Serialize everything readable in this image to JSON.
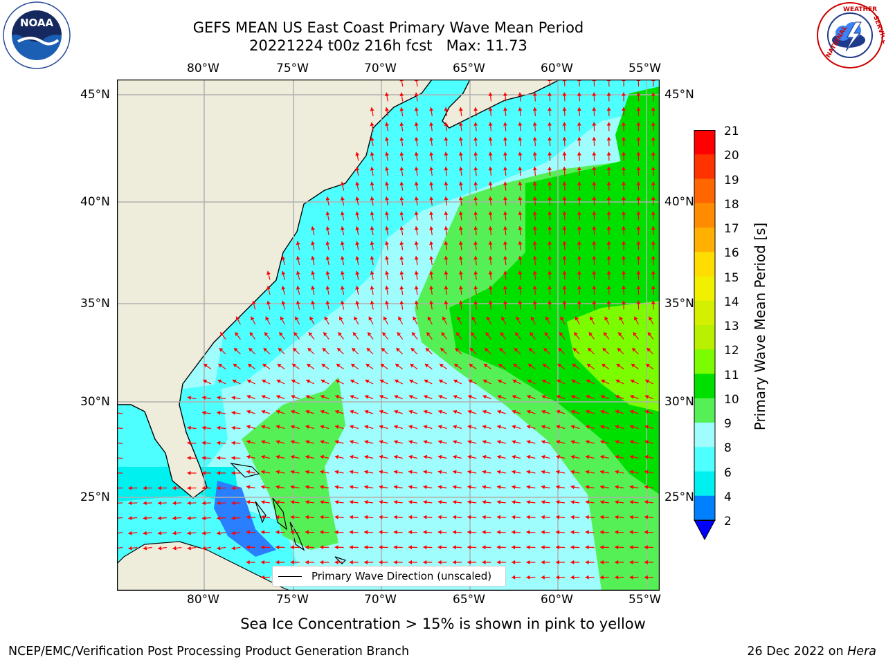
{
  "header": {
    "title_line1": "GEFS MEAN US East Coast Primary Wave Mean Period",
    "title_line2": "20221224 t00z 216h fcst   Max: 11.73"
  },
  "logos": {
    "noaa_text": "NOAA",
    "nws_ring_text": "NATIONAL WEATHER SERVICE"
  },
  "map": {
    "lon_ticks": [
      "80°W",
      "75°W",
      "70°W",
      "65°W",
      "60°W",
      "55°W"
    ],
    "lat_ticks": [
      "45°N",
      "40°N",
      "35°N",
      "30°N",
      "25°N"
    ],
    "legend_label": "Primary Wave Direction (unscaled)",
    "colors": {
      "land": "#eeeddc",
      "ocean_base": "#9ffdfd",
      "arrow": "#ff0000",
      "grid": "#b0b0b0"
    }
  },
  "colorbar": {
    "label": "Primary Wave Mean Period [s]",
    "ticks": [
      "21",
      "20",
      "19",
      "18",
      "17",
      "16",
      "15",
      "14",
      "13",
      "12",
      "11",
      "10",
      "9",
      "8",
      "6",
      "4",
      "2"
    ],
    "colors": [
      "#ff0000",
      "#ff3300",
      "#ff6600",
      "#ff8c00",
      "#ffb000",
      "#ffdd00",
      "#f0f000",
      "#d4f000",
      "#b8f000",
      "#7cfc00",
      "#00e000",
      "#55f055",
      "#9ffdfd",
      "#4dffff",
      "#00f0f0",
      "#0080ff"
    ],
    "under_color": "#0000ff"
  },
  "chart_data": {
    "type": "heatmap",
    "title": "GEFS MEAN US East Coast Primary Wave Mean Period",
    "subtitle": "20221224 t00z 216h fcst   Max: 11.73",
    "variable": "Primary Wave Mean Period [s]",
    "max": 11.73,
    "colorbar_range": [
      2,
      21
    ],
    "lon_range": [
      -85,
      -54
    ],
    "lat_range": [
      20.5,
      46
    ],
    "overlay": "Primary Wave Direction (unscaled)"
  },
  "footer": {
    "note": "Sea Ice Concentration > 15% is shown in pink to yellow",
    "left": "NCEP/EMC/Verification Post Processing Product Generation Branch",
    "right_date": "26 Dec 2022 on ",
    "right_host": "Hera"
  }
}
